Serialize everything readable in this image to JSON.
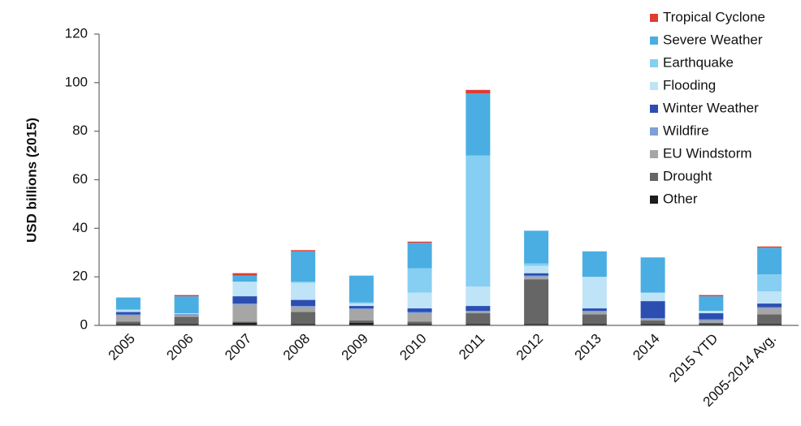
{
  "chart_data": {
    "type": "stacked_bar",
    "y_label": "USD billions (2015)",
    "categories": [
      "2005",
      "2006",
      "2007",
      "2008",
      "2009",
      "2010",
      "2011",
      "2012",
      "2013",
      "2014",
      "2015 YTD",
      "2005-2014 Avg."
    ],
    "series": [
      {
        "name": "Other",
        "color": "#1c1c1c",
        "values": [
          0.5,
          0.5,
          1,
          0.5,
          1,
          0.5,
          0.5,
          0.5,
          0.5,
          0.5,
          0.5,
          0.5
        ]
      },
      {
        "name": "Drought",
        "color": "#666666",
        "values": [
          1,
          3,
          0.5,
          5,
          1,
          1,
          4.5,
          18.5,
          4,
          1.5,
          0.5,
          4
        ]
      },
      {
        "name": "EU Windstorm",
        "color": "#a6a6a6",
        "values": [
          2.5,
          0.5,
          7,
          2,
          4.5,
          3.5,
          0.5,
          1,
          1,
          0.5,
          1,
          2.5
        ]
      },
      {
        "name": "Wildfire",
        "color": "#7f9fd8",
        "values": [
          0.5,
          0.3,
          0.5,
          0.5,
          0.5,
          0.5,
          0.5,
          0.5,
          0.5,
          0.5,
          0.5,
          0.5
        ]
      },
      {
        "name": "Winter Weather",
        "color": "#2b4eb0",
        "values": [
          1,
          0.2,
          3,
          2.5,
          1,
          1.5,
          2,
          1,
          1,
          7,
          2.5,
          1.5
        ]
      },
      {
        "name": "Flooding",
        "color": "#bfe3f7",
        "values": [
          1,
          0.5,
          6,
          7,
          1,
          6.5,
          8,
          3,
          13,
          3.5,
          1,
          5
        ]
      },
      {
        "name": "Earthquake",
        "color": "#86cff2",
        "values": [
          0,
          0,
          0,
          0.5,
          0.5,
          10,
          54,
          1,
          0,
          0,
          0,
          7
        ]
      },
      {
        "name": "Severe Weather",
        "color": "#4aaee2",
        "values": [
          5,
          7,
          2.5,
          12.5,
          11,
          10.5,
          25.5,
          13.5,
          10.5,
          14.5,
          6,
          11
        ]
      },
      {
        "name": "Tropical Cyclone",
        "color": "#e03c31",
        "values": [
          0,
          0.5,
          1,
          0.5,
          0,
          0.5,
          1.5,
          0,
          0,
          0,
          0.5,
          0.5
        ]
      }
    ],
    "ylim": [
      0,
      120
    ],
    "yticks": [
      0,
      20,
      40,
      60,
      80,
      100,
      120
    ],
    "grid": false,
    "legend": "top-right"
  }
}
